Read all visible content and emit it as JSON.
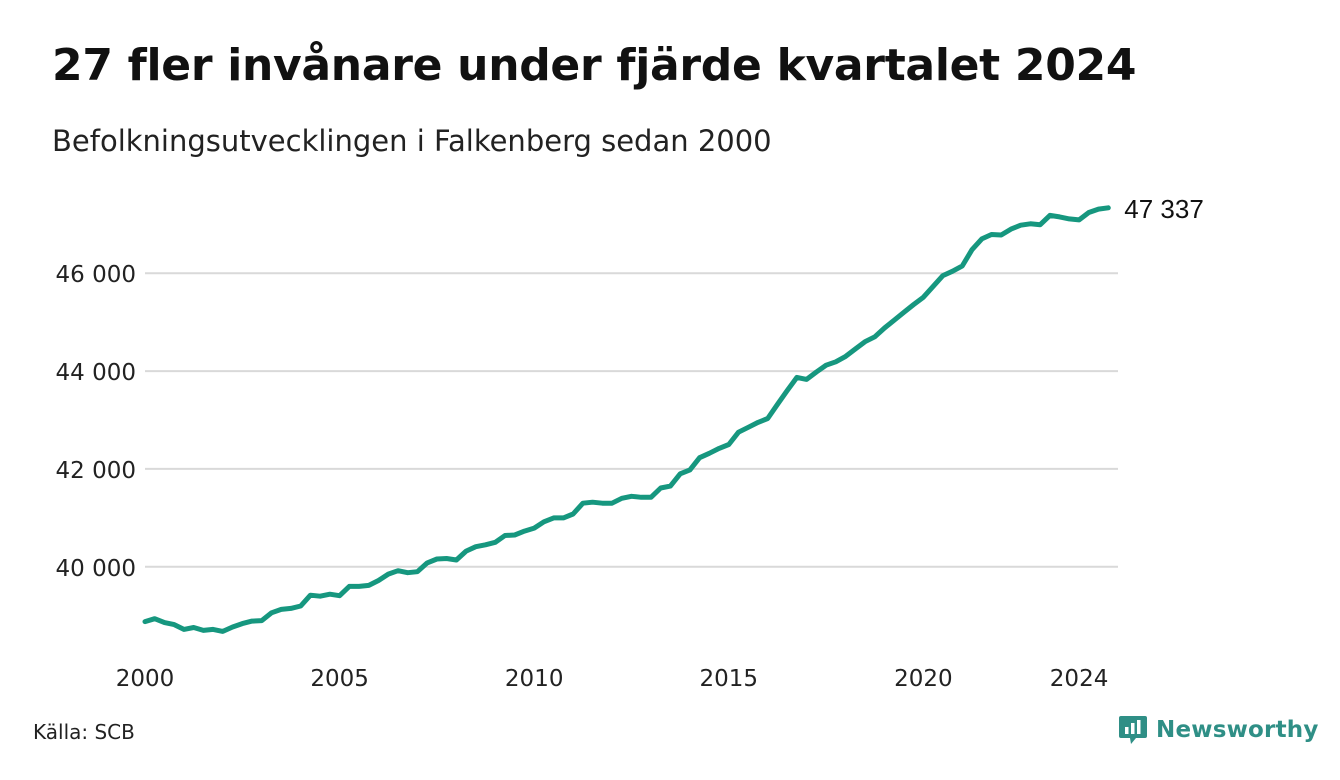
{
  "title": "27 fler invånare under fjärde kvartalet 2024",
  "subtitle": "Befolkningsutvecklingen i Falkenberg sedan 2000",
  "source": "Källa: SCB",
  "brand": {
    "name": "Newsworthy",
    "icon": "newsworthy-logo-icon"
  },
  "colors": {
    "line": "#16977f",
    "grid": "#d9d9d9",
    "brand": "#2f8f86"
  },
  "chart_data": {
    "type": "line",
    "title": "27 fler invånare under fjärde kvartalet 2024",
    "subtitle": "Befolkningsutvecklingen i Falkenberg sedan 2000",
    "xlabel": "",
    "ylabel": "",
    "xlim": [
      2000,
      2025
    ],
    "ylim": [
      38300,
      47700
    ],
    "x_ticks": [
      2000,
      2005,
      2010,
      2015,
      2020,
      2024
    ],
    "y_ticks": [
      40000,
      42000,
      44000,
      46000
    ],
    "y_tick_labels": [
      "40 000",
      "42 000",
      "44 000",
      "46 000"
    ],
    "grid": "horizontal",
    "end_label": "47 337",
    "series": [
      {
        "x": [
          2000.0,
          2000.25,
          2000.5,
          2000.75,
          2001.0,
          2001.25,
          2001.5,
          2001.75,
          2002.0,
          2002.25,
          2002.5,
          2002.75,
          2003.0,
          2003.25,
          2003.5,
          2003.75,
          2004.0,
          2004.25,
          2004.5,
          2004.75,
          2005.0,
          2005.25,
          2005.5,
          2005.75,
          2006.0,
          2006.25,
          2006.5,
          2006.75,
          2007.0,
          2007.25,
          2007.5,
          2007.75,
          2008.0,
          2008.25,
          2008.5,
          2008.75,
          2009.0,
          2009.25,
          2009.5,
          2009.75,
          2010.0,
          2010.25,
          2010.5,
          2010.75,
          2011.0,
          2011.25,
          2011.5,
          2011.75,
          2012.0,
          2012.25,
          2012.5,
          2012.75,
          2013.0,
          2013.25,
          2013.5,
          2013.75,
          2014.0,
          2014.25,
          2014.5,
          2014.75,
          2015.0,
          2015.25,
          2015.5,
          2015.75,
          2016.0,
          2016.25,
          2016.5,
          2016.75,
          2017.0,
          2017.25,
          2017.5,
          2017.75,
          2018.0,
          2018.25,
          2018.5,
          2018.75,
          2019.0,
          2019.25,
          2019.5,
          2019.75,
          2020.0,
          2020.25,
          2020.5,
          2020.75,
          2021.0,
          2021.25,
          2021.5,
          2021.75,
          2022.0,
          2022.25,
          2022.5,
          2022.75,
          2023.0,
          2023.25,
          2023.5,
          2023.75,
          2024.0,
          2024.25,
          2024.5,
          2024.75
        ],
        "values": [
          38880,
          38940,
          38860,
          38820,
          38720,
          38760,
          38700,
          38720,
          38680,
          38770,
          38840,
          38890,
          38900,
          39060,
          39130,
          39150,
          39200,
          39420,
          39400,
          39440,
          39410,
          39600,
          39600,
          39620,
          39720,
          39850,
          39920,
          39880,
          39900,
          40080,
          40160,
          40170,
          40140,
          40320,
          40410,
          40450,
          40500,
          40640,
          40650,
          40730,
          40790,
          40920,
          41000,
          41000,
          41080,
          41300,
          41320,
          41300,
          41300,
          41400,
          41440,
          41420,
          41420,
          41610,
          41650,
          41900,
          41980,
          42230,
          42320,
          42420,
          42500,
          42750,
          42850,
          42950,
          43030,
          43320,
          43600,
          43870,
          43830,
          43980,
          44120,
          44190,
          44300,
          44450,
          44600,
          44700,
          44880,
          45040,
          45200,
          45360,
          45510,
          45730,
          45950,
          46040,
          46150,
          46480,
          46700,
          46790,
          46780,
          46900,
          46980,
          47010,
          46990,
          47180,
          47150,
          47110,
          47090,
          47240,
          47310,
          47337
        ]
      }
    ]
  }
}
